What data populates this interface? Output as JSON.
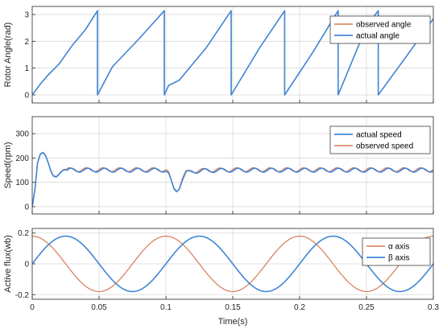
{
  "colors": {
    "blue": "#3f86d6",
    "orange": "#d77a55",
    "grid": "#d9d9d9",
    "axis": "#262626",
    "panel_bg": "#ffffff"
  },
  "chart_data": [
    {
      "type": "line",
      "ylabel": "Rotor Angle(rad)",
      "xlim": [
        0,
        0.3
      ],
      "ylim": [
        -0.3,
        3.3
      ],
      "yticks": [
        "0",
        "1",
        "2",
        "3"
      ],
      "grid": true,
      "legend_position": "top-right",
      "x": [
        0,
        0.006,
        0.012,
        0.02,
        0.03,
        0.04,
        0.0488,
        0.04881,
        0.06,
        0.08,
        0.0988,
        0.09881,
        0.102,
        0.106,
        0.11,
        0.13,
        0.1488,
        0.14881,
        0.17,
        0.1888,
        0.18881,
        0.21,
        0.2288,
        0.22881,
        0.25,
        0.2588,
        0.25881,
        0.28,
        0.3
      ],
      "series": [
        {
          "name": "observed angle",
          "color": "orange",
          "values": [
            0,
            0.4,
            0.75,
            1.15,
            1.85,
            2.45,
            3.14,
            0,
            1.05,
            2.1,
            3.14,
            0,
            0.35,
            0.45,
            0.55,
            1.75,
            3.14,
            0,
            1.75,
            3.14,
            0,
            1.6,
            3.14,
            0,
            2.55,
            3.14,
            0,
            1.45,
            2.84
          ]
        },
        {
          "name": "actual angle",
          "color": "blue",
          "values": [
            0,
            0.4,
            0.75,
            1.15,
            1.85,
            2.45,
            3.14,
            0,
            1.05,
            2.1,
            3.14,
            0,
            0.35,
            0.45,
            0.55,
            1.75,
            3.14,
            0,
            1.75,
            3.14,
            0,
            1.6,
            3.14,
            0,
            2.55,
            3.14,
            0,
            1.45,
            2.84
          ]
        }
      ]
    },
    {
      "type": "line",
      "ylabel": "Speed(rpm)",
      "xlim": [
        0,
        0.3
      ],
      "ylim": [
        -30,
        370
      ],
      "yticks": [
        "0",
        "100",
        "200",
        "300"
      ],
      "grid": true,
      "legend_position": "top-right",
      "x": [
        0,
        0.002,
        0.004,
        0.006,
        0.008,
        0.01,
        0.012,
        0.014,
        0.016,
        0.018,
        0.02,
        0.022,
        0.024,
        0.026,
        0.03,
        0.04,
        0.05,
        0.06,
        0.07,
        0.08,
        0.09,
        0.098,
        0.1,
        0.102,
        0.104,
        0.106,
        0.108,
        0.11,
        0.112,
        0.115,
        0.12,
        0.13,
        0.15,
        0.2,
        0.25,
        0.3
      ],
      "oscillation": {
        "amplitude": 8,
        "period": 0.0125,
        "from_x": 0.026
      },
      "series": [
        {
          "name": "actual speed",
          "color": "blue",
          "values": [
            0,
            70,
            180,
            215,
            222,
            210,
            180,
            145,
            125,
            122,
            132,
            145,
            152,
            150,
            150,
            150,
            150,
            150,
            150,
            150,
            150,
            150,
            150,
            135,
            100,
            70,
            65,
            80,
            110,
            138,
            145,
            148,
            150,
            150,
            150,
            150
          ]
        },
        {
          "name": "observed speed",
          "color": "orange",
          "values": [
            0,
            72,
            182,
            217,
            224,
            212,
            182,
            147,
            127,
            124,
            134,
            147,
            154,
            152,
            152,
            152,
            152,
            152,
            152,
            152,
            152,
            152,
            152,
            137,
            102,
            72,
            67,
            82,
            112,
            140,
            147,
            150,
            152,
            152,
            152,
            152
          ]
        }
      ]
    },
    {
      "type": "line",
      "ylabel": "Active flux(wb)",
      "xlabel": "Time(s)",
      "xlim": [
        0,
        0.3
      ],
      "ylim": [
        -0.23,
        0.23
      ],
      "yticks": [
        "-0.2",
        "0",
        "0.2"
      ],
      "xticks": [
        "0",
        "0.05",
        "0.1",
        "0.15",
        "0.2",
        "0.25",
        "0.3"
      ],
      "grid": true,
      "legend_position": "top-right",
      "x": [
        0,
        0.0125,
        0.025,
        0.0375,
        0.05,
        0.0625,
        0.075,
        0.0875,
        0.1,
        0.1125,
        0.125,
        0.1375,
        0.15,
        0.1625,
        0.175,
        0.1875,
        0.2,
        0.2125,
        0.225,
        0.2375,
        0.25,
        0.2625,
        0.275,
        0.2875,
        0.3
      ],
      "series": [
        {
          "name": "α axis",
          "color": "orange",
          "values": [
            0.18,
            0.13,
            0.0,
            -0.13,
            -0.18,
            -0.13,
            0.0,
            0.13,
            0.18,
            0.13,
            0.0,
            -0.13,
            -0.18,
            -0.13,
            0.0,
            0.13,
            0.18,
            0.13,
            0.0,
            -0.13,
            -0.18,
            -0.13,
            0.0,
            0.13,
            0.18
          ]
        },
        {
          "name": "β axis",
          "color": "blue",
          "values": [
            0.0,
            0.13,
            0.18,
            0.13,
            0.0,
            -0.13,
            -0.18,
            -0.13,
            0.0,
            0.13,
            0.18,
            0.13,
            0.0,
            -0.13,
            -0.18,
            -0.13,
            0.0,
            0.13,
            0.18,
            0.13,
            0.0,
            -0.13,
            -0.18,
            -0.13,
            0.0
          ]
        }
      ]
    }
  ]
}
